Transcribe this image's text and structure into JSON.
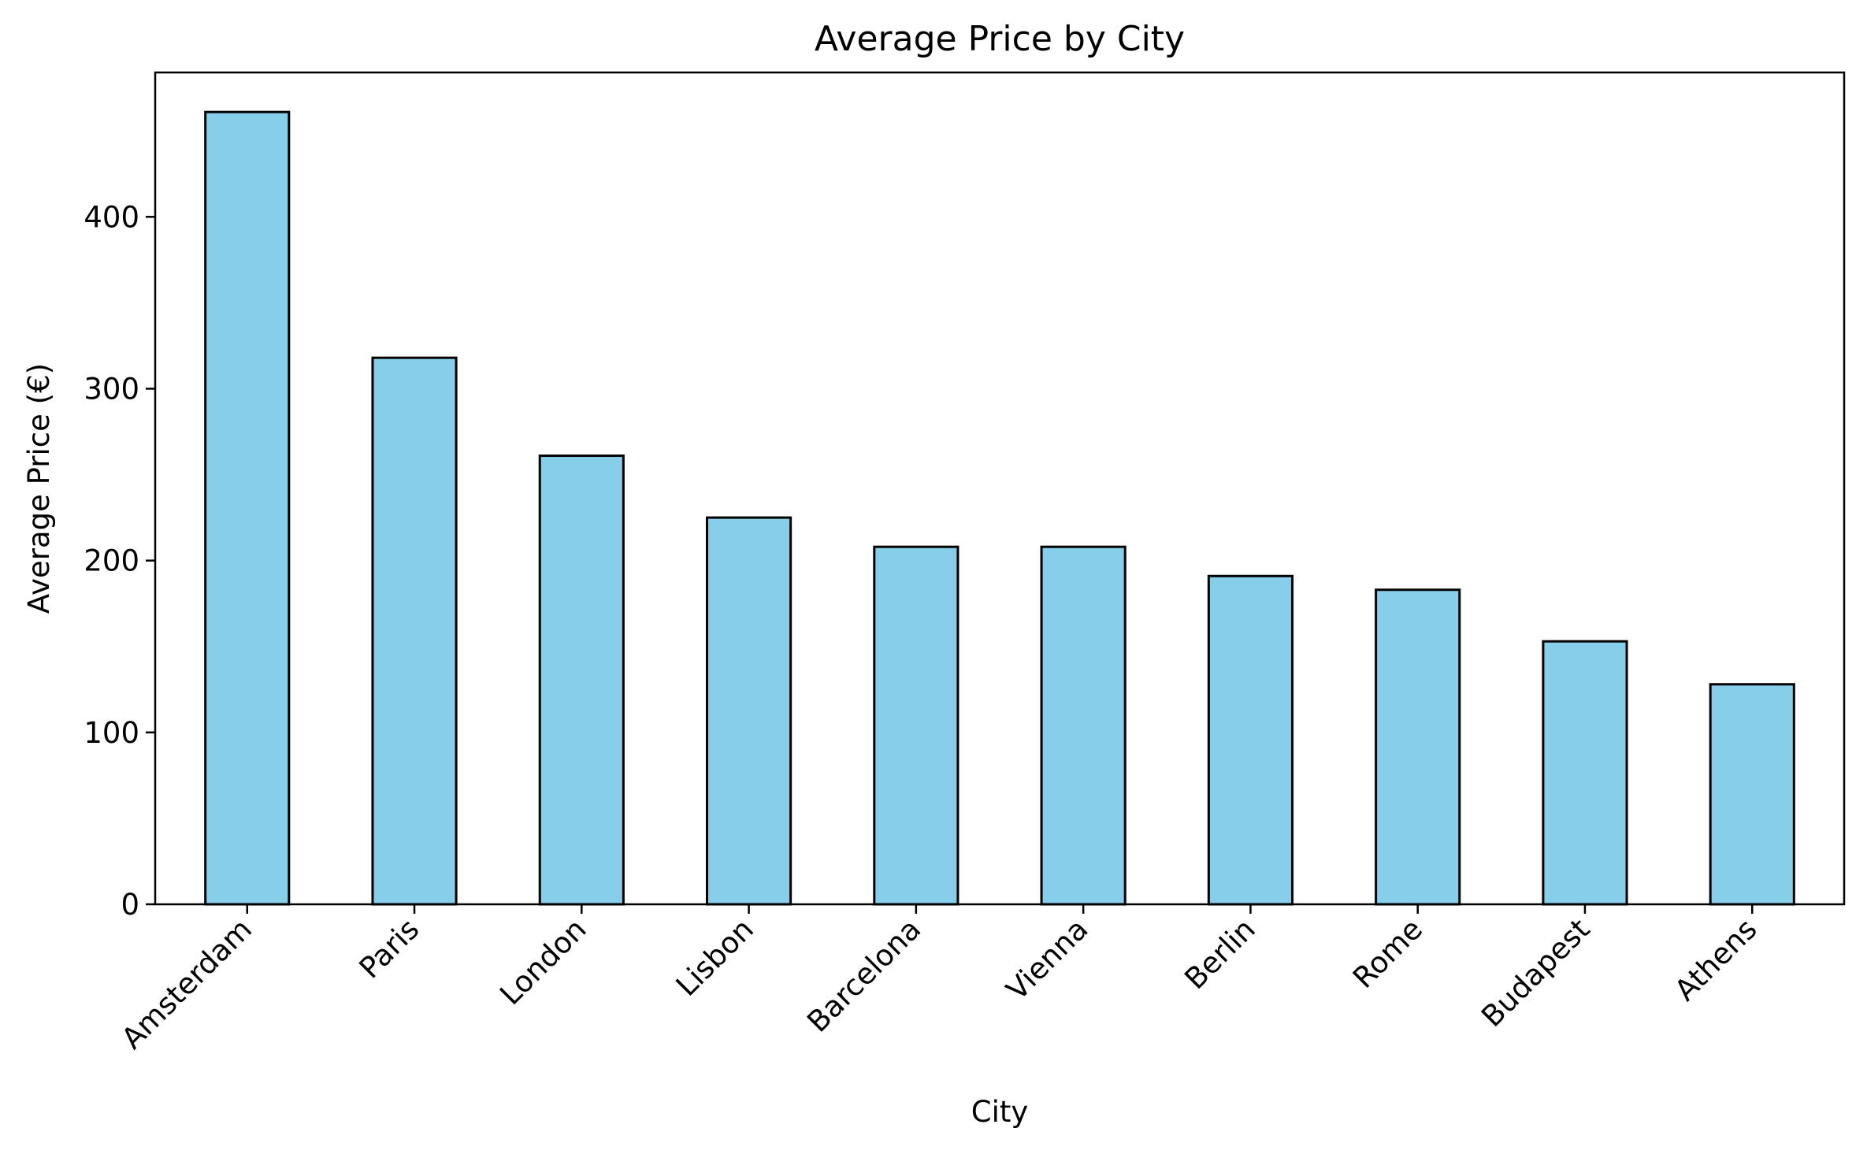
{
  "chart_data": {
    "type": "bar",
    "title": "Average Price by City",
    "xlabel": "City",
    "ylabel": "Average Price (€)",
    "categories": [
      "Amsterdam",
      "Paris",
      "London",
      "Lisbon",
      "Barcelona",
      "Vienna",
      "Berlin",
      "Rome",
      "Budapest",
      "Athens"
    ],
    "values": [
      461,
      318,
      261,
      225,
      208,
      208,
      191,
      183,
      153,
      128
    ],
    "ylim": [
      0,
      484
    ],
    "yticks": [
      0,
      100,
      200,
      300,
      400
    ],
    "grid": false,
    "legend": "none",
    "colors": {
      "bar_fill": "#87CEEB",
      "bar_edge": "#000000",
      "axis": "#000000"
    }
  }
}
